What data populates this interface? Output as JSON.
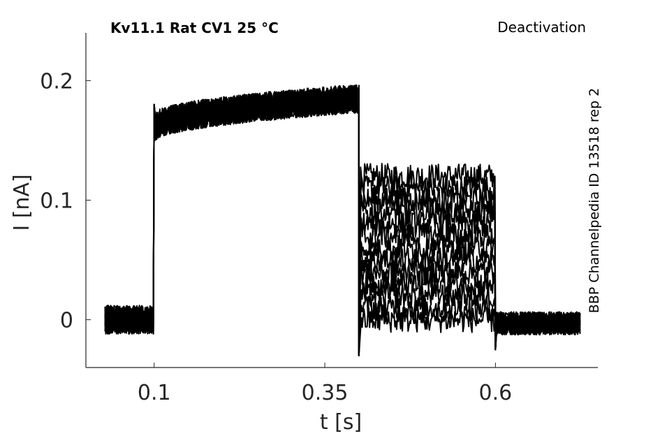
{
  "chart_data": {
    "type": "line",
    "title": "Kv11.1  Rat  CV1  25 °C",
    "protocol": "Deactivation",
    "side_label": "BBP Channelpedia ID 13518 rep 2",
    "xlabel": "t [s]",
    "ylabel": "I [nA]",
    "xlim": [
      0.0,
      0.75
    ],
    "ylim": [
      -0.04,
      0.24
    ],
    "xticks": [
      0.1,
      0.35,
      0.6
    ],
    "xtick_labels": [
      "0.1",
      "0.35",
      "0.6"
    ],
    "yticks": [
      0,
      0.1,
      0.2
    ],
    "ytick_labels": [
      "0",
      "0.1",
      "0.2"
    ],
    "grid": false,
    "line_color": "#000000",
    "noise_amplitude_nA": 0.012,
    "epochs": {
      "holding_end_s": 0.1,
      "activation_end_s": 0.4,
      "test_end_s": 0.6,
      "trace_start_s": 0.028,
      "trace_end_s": 0.725
    },
    "activation_current_nA": {
      "start": 0.16,
      "end": 0.185
    },
    "series": [
      {
        "values": {
          "holding": 0.0,
          "activation_end": 0.185,
          "test_level": 0.12,
          "post": -0.003
        }
      },
      {
        "values": {
          "holding": 0.0,
          "activation_end": 0.185,
          "test_level": 0.11,
          "post": -0.003
        }
      },
      {
        "values": {
          "holding": 0.0,
          "activation_end": 0.185,
          "test_level": 0.1,
          "post": -0.003
        }
      },
      {
        "values": {
          "holding": 0.0,
          "activation_end": 0.185,
          "test_level": 0.09,
          "post": -0.003
        }
      },
      {
        "values": {
          "holding": 0.0,
          "activation_end": 0.185,
          "test_level": 0.08,
          "post": -0.003
        }
      },
      {
        "values": {
          "holding": 0.0,
          "activation_end": 0.185,
          "test_level": 0.07,
          "post": -0.003
        }
      },
      {
        "values": {
          "holding": 0.0,
          "activation_end": 0.185,
          "test_level": 0.06,
          "post": -0.003
        }
      },
      {
        "values": {
          "holding": 0.0,
          "activation_end": 0.185,
          "test_level": 0.05,
          "post": -0.003
        }
      },
      {
        "values": {
          "holding": 0.0,
          "activation_end": 0.185,
          "test_level": 0.04,
          "post": -0.003
        }
      },
      {
        "values": {
          "holding": 0.0,
          "activation_end": 0.185,
          "test_level": 0.03,
          "post": -0.003
        }
      },
      {
        "values": {
          "holding": 0.0,
          "activation_end": 0.185,
          "test_level": 0.02,
          "post": -0.003
        }
      },
      {
        "values": {
          "holding": 0.0,
          "activation_end": 0.185,
          "test_level": 0.01,
          "post": -0.003
        }
      },
      {
        "values": {
          "holding": 0.0,
          "activation_end": 0.185,
          "test_level": 0.0,
          "post": -0.003
        }
      }
    ]
  }
}
